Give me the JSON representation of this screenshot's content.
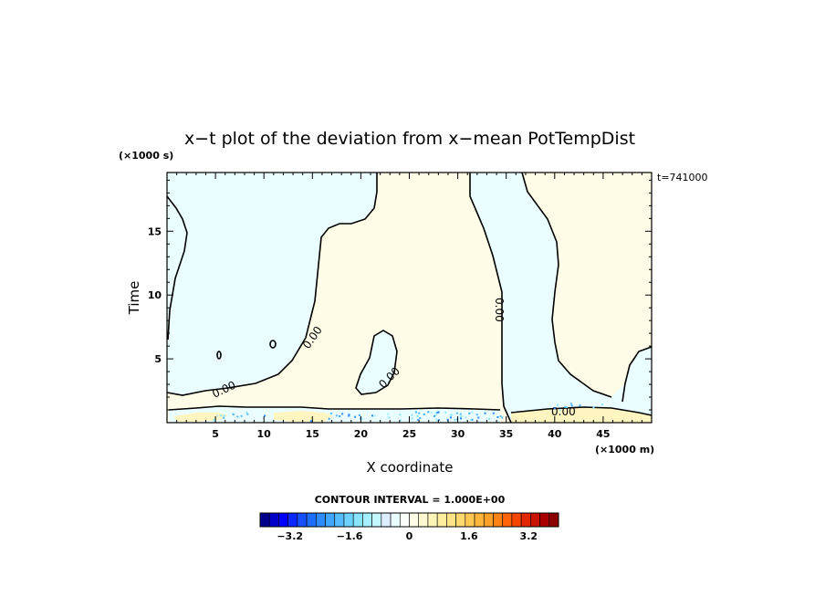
{
  "chart_data": {
    "type": "heatmap",
    "title": "x−t plot of the deviation from x−mean PotTempDist",
    "xlabel": "X coordinate",
    "ylabel": "Time",
    "x_unit": "(×1000 m)",
    "y_unit": "(×1000 s)",
    "time_stamp": "t=741000",
    "xlim": [
      0,
      50
    ],
    "ylim": [
      0,
      19.6
    ],
    "x_ticks": [
      5,
      10,
      15,
      20,
      25,
      30,
      35,
      40,
      45
    ],
    "x_tick_labels": [
      "5",
      "10",
      "15",
      "20",
      "25",
      "30",
      "35",
      "40",
      "45"
    ],
    "y_ticks": [
      5,
      10,
      15
    ],
    "y_tick_labels": [
      "5",
      "10",
      "15"
    ],
    "contour_interval": "CONTOUR INTERVAL = 1.000E+00",
    "contour_level_label": "0.00",
    "colorbar": {
      "min": -4.0,
      "max": 4.0,
      "tick_values": [
        -3.2,
        -1.6,
        0,
        1.6,
        3.2
      ],
      "tick_labels": [
        "−3.2",
        "−1.6",
        "0",
        "1.6",
        "3.2"
      ],
      "colors": [
        "#00008c",
        "#0000c8",
        "#0000ff",
        "#0a28ff",
        "#1450ff",
        "#1e6eff",
        "#2d8cff",
        "#40a6ff",
        "#55bcff",
        "#6dd2ff",
        "#88e4ff",
        "#a5f0ff",
        "#c3f8ff",
        "#def",
        "#eafdff",
        "#fafffa",
        "#fffde8",
        "#fffad2",
        "#fff5b9",
        "#ffeea0",
        "#ffe487",
        "#ffd86e",
        "#ffc855",
        "#ffb43c",
        "#ffa028",
        "#ff8214",
        "#ff640a",
        "#f54600",
        "#e12800",
        "#c81400",
        "#aa0000",
        "#8c0000"
      ]
    },
    "regions": [
      {
        "sign": "negative",
        "color": "#eafdff"
      },
      {
        "sign": "positive",
        "color": "#fffde8"
      }
    ]
  }
}
